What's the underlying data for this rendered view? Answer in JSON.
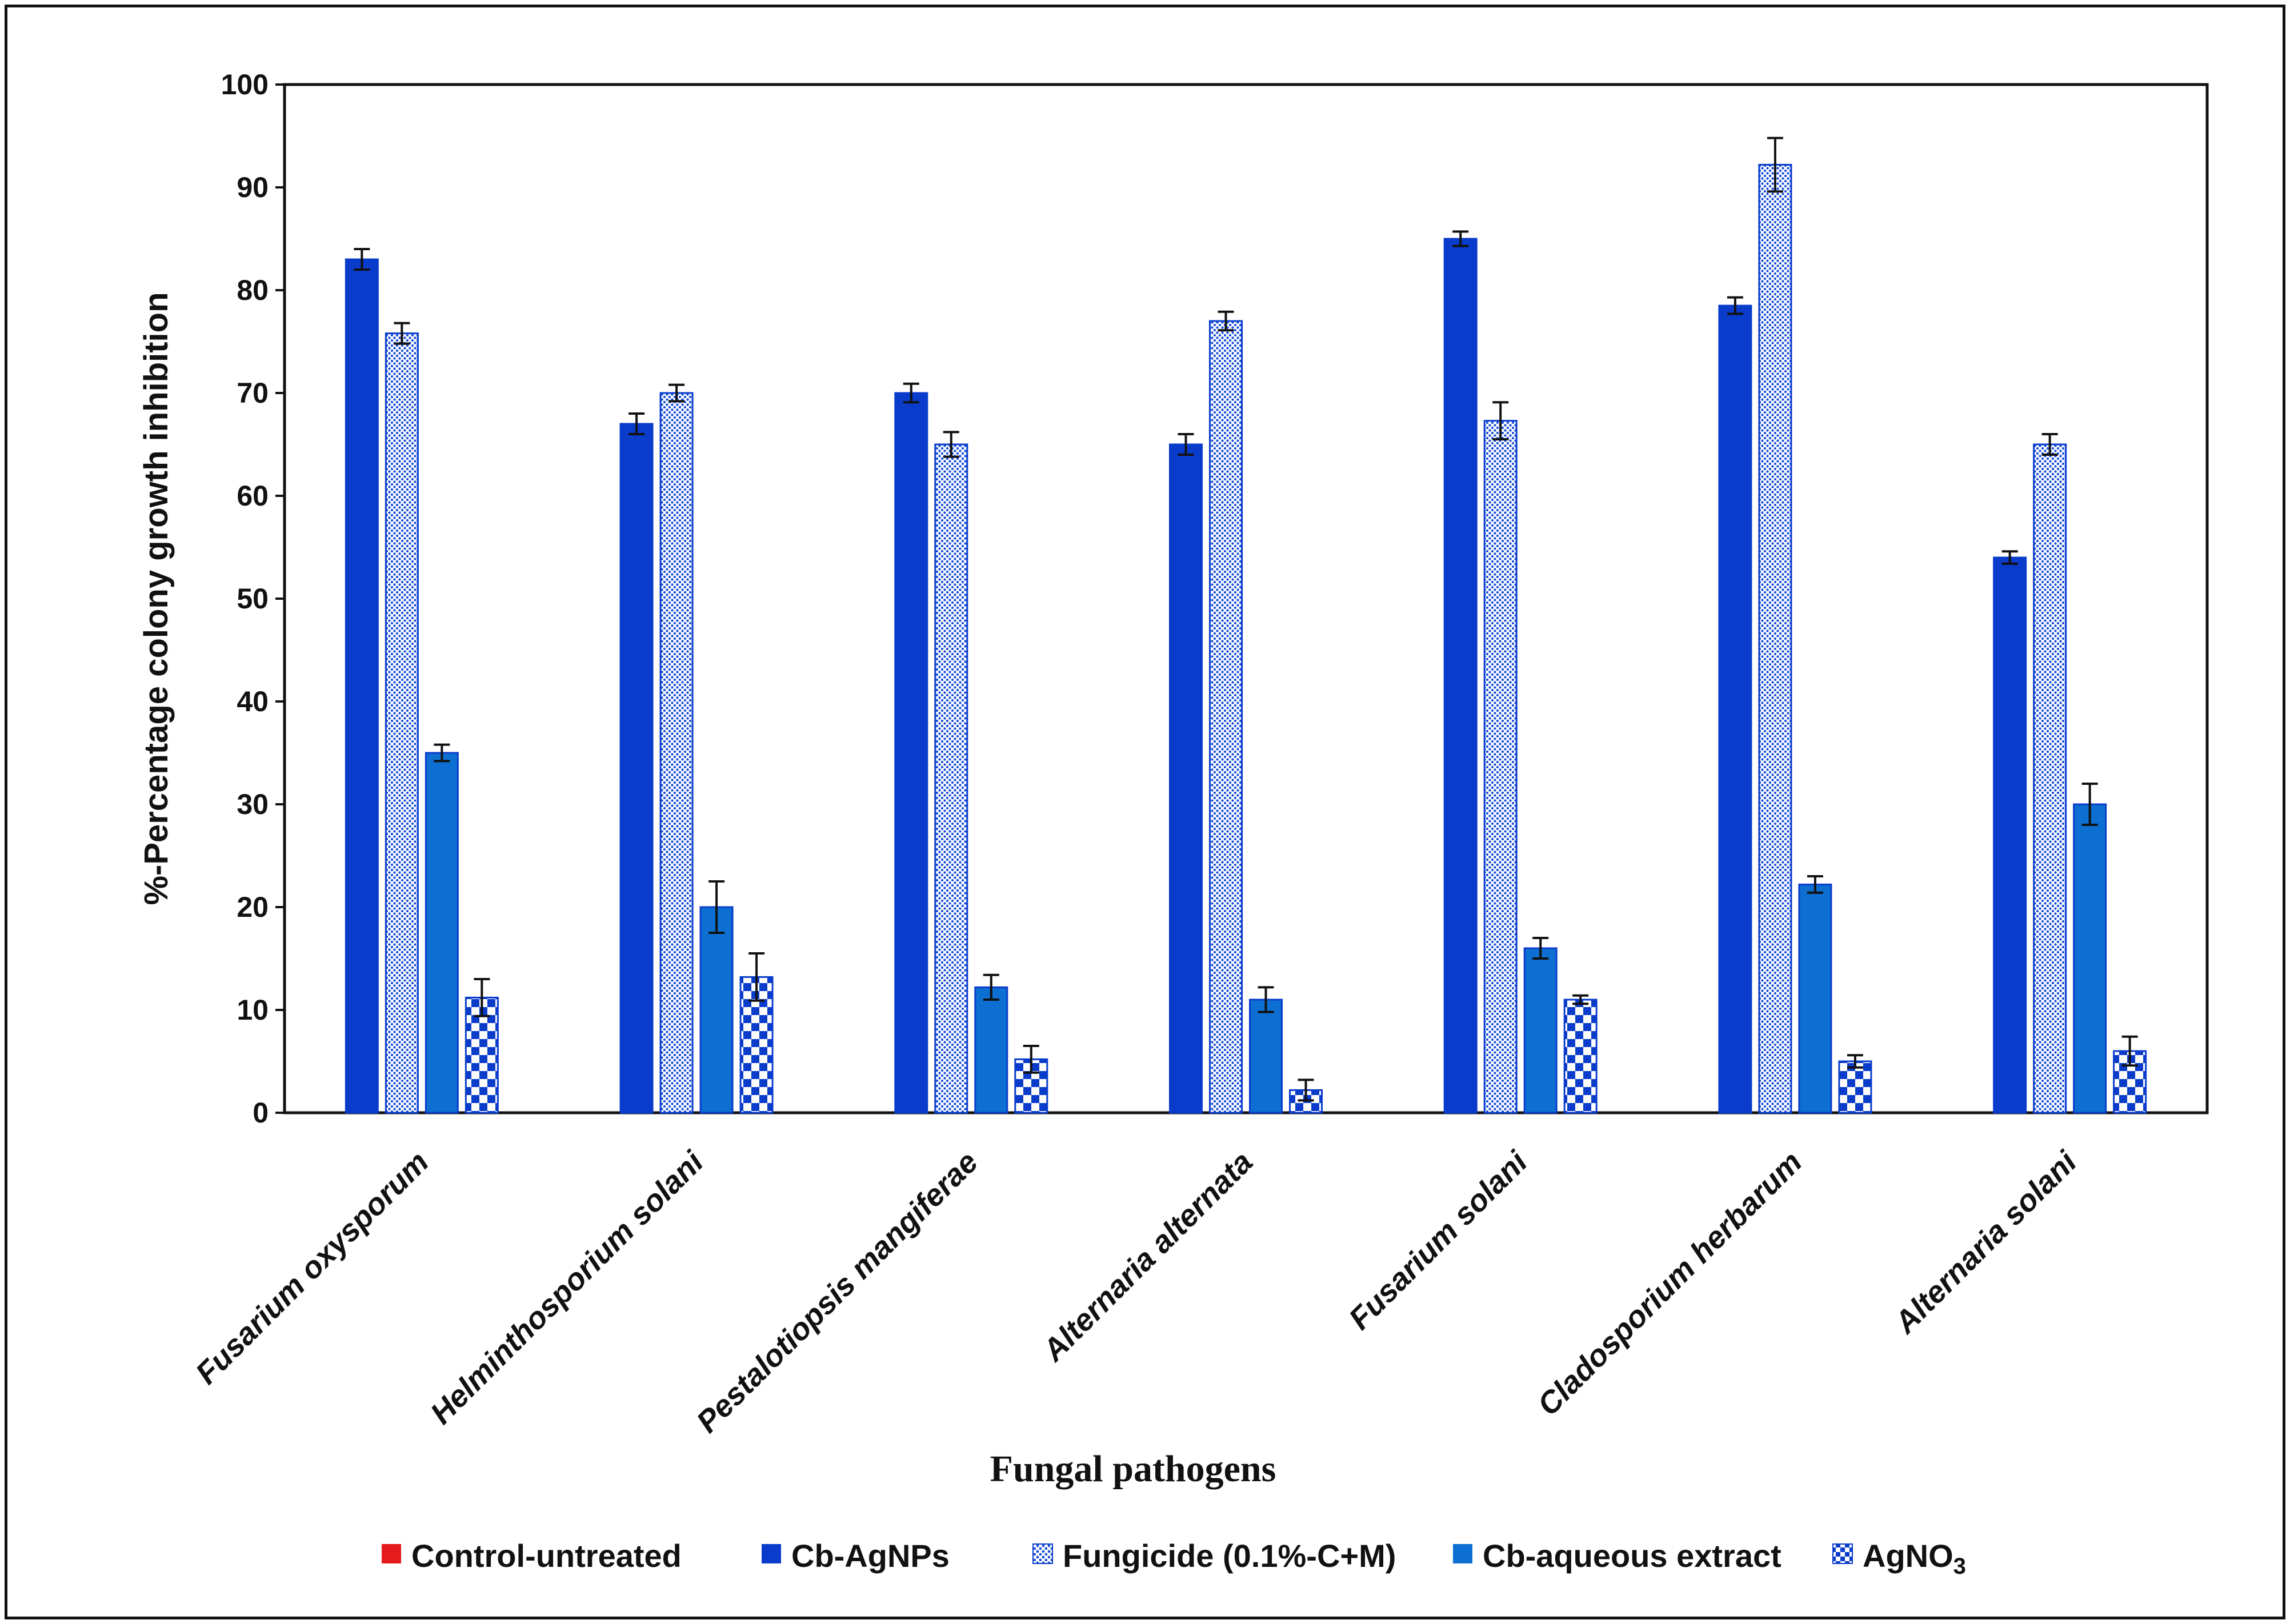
{
  "chart_data": {
    "type": "bar",
    "title": "",
    "xlabel": "Fungal pathogens",
    "ylabel": "%-Percentage colony growth inhibition",
    "ylim": [
      0,
      100
    ],
    "yticks": [
      0,
      10,
      20,
      30,
      40,
      50,
      60,
      70,
      80,
      90,
      100
    ],
    "grid": false,
    "legend_position": "bottom",
    "categories": [
      "Fusarium oxysporum",
      "Helminthosporium  solani",
      "Pestalotiopsis mangiferae",
      "Alternaria alternata",
      "Fusarium solani",
      "Cladosporium herbarum",
      "Alternaria solani"
    ],
    "series": [
      {
        "name": "Control-untreated",
        "legend_main": "Control-untreated",
        "legend_sub": "",
        "color": "#e41a1c",
        "pattern": "solid",
        "values": [
          0,
          0,
          0,
          0,
          0,
          0,
          0
        ],
        "errors": [
          0,
          0,
          0,
          0,
          0,
          0,
          0
        ]
      },
      {
        "name": "Cb-AgNPs",
        "legend_main": "Cb-AgNPs",
        "legend_sub": "",
        "color": "#0a3ccc",
        "pattern": "solid",
        "values": [
          83,
          67,
          70,
          65,
          85,
          78.5,
          54
        ],
        "errors": [
          1.0,
          1.0,
          0.9,
          1.0,
          0.7,
          0.8,
          0.6
        ]
      },
      {
        "name": "Fungicide (0.1%-C+M)",
        "legend_main": "Fungicide (0.1%-C+M)",
        "legend_sub": "",
        "color": "#1a4fd8",
        "pattern": "dots",
        "values": [
          75.8,
          70,
          65,
          77,
          67.3,
          92.2,
          65
        ],
        "errors": [
          1.0,
          0.8,
          1.2,
          0.9,
          1.8,
          2.6,
          1.0
        ]
      },
      {
        "name": "Cb-aqueous extract",
        "legend_main": "Cb-aqueous extract",
        "legend_sub": "",
        "color": "#0d6fd1",
        "pattern": "solid",
        "values": [
          35,
          20,
          12.2,
          11,
          16,
          22.2,
          30
        ],
        "errors": [
          0.8,
          2.5,
          1.2,
          1.2,
          1.0,
          0.8,
          2.0
        ]
      },
      {
        "name": "AgNO3",
        "legend_main": "AgNO",
        "legend_sub": "3",
        "color": "#0a3ccc",
        "pattern": "checker",
        "values": [
          11.2,
          13.2,
          5.2,
          2.2,
          11,
          5,
          6
        ],
        "errors": [
          1.8,
          2.3,
          1.3,
          1.0,
          0.4,
          0.6,
          1.4
        ]
      }
    ]
  }
}
